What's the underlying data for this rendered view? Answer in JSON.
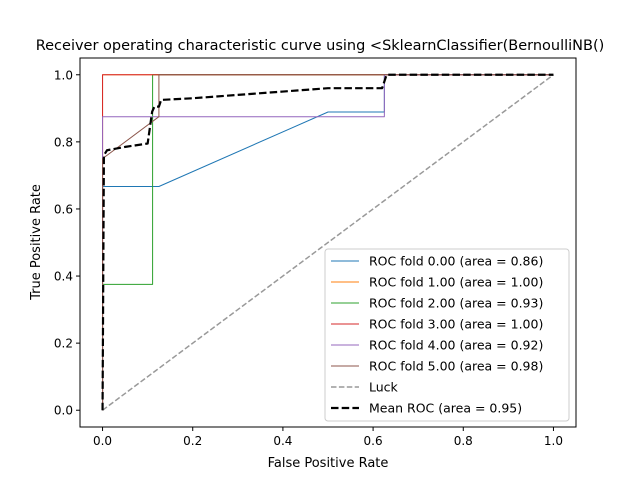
{
  "chart_data": {
    "type": "line",
    "title": "Receiver operating characteristic curve using <SklearnClassifier(BernoulliNB()",
    "xlabel": "False Positive Rate",
    "ylabel": "True Positive Rate",
    "xlim": [
      -0.05,
      1.05
    ],
    "ylim": [
      -0.05,
      1.05
    ],
    "xticks": [
      "0.0",
      "0.2",
      "0.4",
      "0.6",
      "0.8",
      "1.0"
    ],
    "yticks": [
      "0.0",
      "0.2",
      "0.4",
      "0.6",
      "0.8",
      "1.0"
    ],
    "grid": false,
    "legend_position": "lower-right",
    "series": [
      {
        "name": "ROC fold 0.00 (area = 0.86)",
        "color": "#1f77b4",
        "style": "solid",
        "x": [
          0,
          0,
          0.125,
          0.5,
          0.625,
          0.625,
          1
        ],
        "y": [
          0,
          0.667,
          0.667,
          0.889,
          0.889,
          1,
          1
        ]
      },
      {
        "name": "ROC fold 1.00 (area = 1.00)",
        "color": "#ff7f0e",
        "style": "solid",
        "x": [
          0,
          0,
          1
        ],
        "y": [
          0,
          1,
          1
        ]
      },
      {
        "name": "ROC fold 2.00 (area = 0.93)",
        "color": "#2ca02c",
        "style": "solid",
        "x": [
          0,
          0,
          0.111,
          0.111,
          1
        ],
        "y": [
          0,
          0.375,
          0.375,
          1,
          1
        ]
      },
      {
        "name": "ROC fold 3.00 (area = 1.00)",
        "color": "#d62728",
        "style": "solid",
        "x": [
          0,
          0,
          1
        ],
        "y": [
          0,
          1,
          1
        ]
      },
      {
        "name": "ROC fold 4.00 (area = 0.92)",
        "color": "#9467bd",
        "style": "solid",
        "x": [
          0,
          0,
          0.625,
          0.625,
          1
        ],
        "y": [
          0,
          0.875,
          0.875,
          1,
          1
        ]
      },
      {
        "name": "ROC fold 5.00 (area = 0.98)",
        "color": "#8c564b",
        "style": "solid",
        "x": [
          0,
          0,
          0.125,
          0.125,
          1
        ],
        "y": [
          0,
          0.75,
          0.875,
          1,
          1
        ]
      },
      {
        "name": "Luck",
        "color": "#999999",
        "style": "dashed",
        "x": [
          0,
          1
        ],
        "y": [
          0,
          1
        ]
      },
      {
        "name": "Mean ROC (area = 0.95)",
        "color": "#000000",
        "style": "dashed-bold",
        "x": [
          0,
          0.003,
          0.01,
          0.05,
          0.1,
          0.11,
          0.115,
          0.125,
          0.13,
          0.2,
          0.3,
          0.4,
          0.5,
          0.55,
          0.6,
          0.62,
          0.625,
          0.63,
          0.7,
          0.8,
          0.9,
          1.0
        ],
        "y": [
          0,
          0.76,
          0.775,
          0.785,
          0.795,
          0.89,
          0.905,
          0.905,
          0.925,
          0.93,
          0.94,
          0.95,
          0.96,
          0.96,
          0.96,
          0.96,
          0.98,
          1.0,
          1.0,
          1.0,
          1.0,
          1.0
        ]
      }
    ]
  }
}
